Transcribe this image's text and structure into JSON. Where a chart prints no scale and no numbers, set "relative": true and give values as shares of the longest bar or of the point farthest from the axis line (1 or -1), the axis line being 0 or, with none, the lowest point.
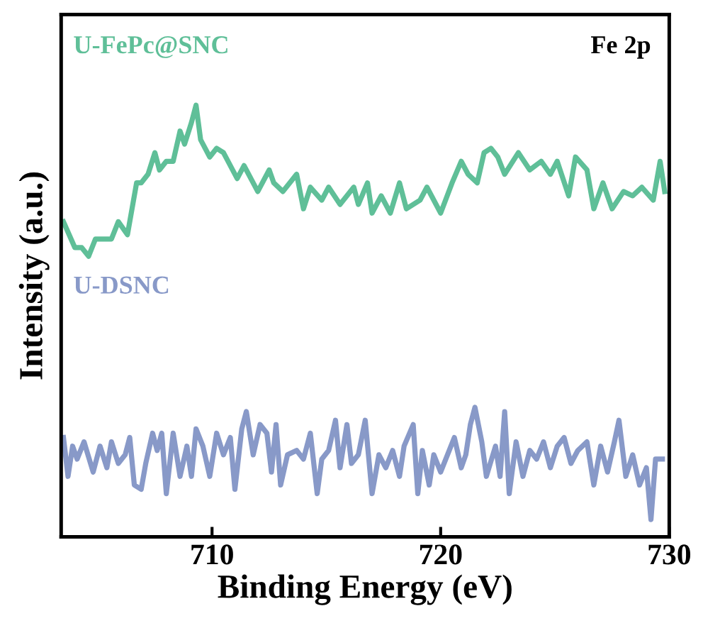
{
  "chart_data": {
    "type": "line",
    "relative": true,
    "xlabel": "Binding Energy (eV)",
    "ylabel": "Intensity (a.u.)",
    "annotations": [
      "Fe 2p"
    ],
    "xlim": [
      703.4,
      730
    ],
    "xticks": [
      710,
      720,
      730
    ],
    "tick_labels": "x",
    "legend": false,
    "grid": false,
    "series": [
      {
        "name": "U-FePc@SNC",
        "color": "#5fbf98",
        "x": [
          703.5,
          704.0,
          704.3,
          704.6,
          704.9,
          705.6,
          705.9,
          706.3,
          706.7,
          706.9,
          707.2,
          707.5,
          707.7,
          708.0,
          708.3,
          708.6,
          708.8,
          709.1,
          709.3,
          709.5,
          709.9,
          710.2,
          710.5,
          711.1,
          711.4,
          711.5,
          712.0,
          712.5,
          712.7,
          713.1,
          713.7,
          714.0,
          714.3,
          714.8,
          715.1,
          715.6,
          716.2,
          716.4,
          716.8,
          717.0,
          717.4,
          717.8,
          718.2,
          718.5,
          719.1,
          719.4,
          720.0,
          720.5,
          720.9,
          721.2,
          721.6,
          721.9,
          722.2,
          722.5,
          722.8,
          723.4,
          723.9,
          724.4,
          724.8,
          725.1,
          725.6,
          725.9,
          726.4,
          726.7,
          727.1,
          727.5,
          728.0,
          728.4,
          728.8,
          729.3,
          729.6,
          729.8
        ],
        "values": [
          0.73,
          0.67,
          0.67,
          0.65,
          0.69,
          0.69,
          0.73,
          0.7,
          0.82,
          0.82,
          0.84,
          0.89,
          0.85,
          0.87,
          0.87,
          0.94,
          0.91,
          0.96,
          1.0,
          0.92,
          0.88,
          0.9,
          0.89,
          0.83,
          0.86,
          0.85,
          0.8,
          0.85,
          0.82,
          0.8,
          0.84,
          0.76,
          0.81,
          0.78,
          0.81,
          0.77,
          0.81,
          0.77,
          0.82,
          0.75,
          0.79,
          0.75,
          0.82,
          0.76,
          0.78,
          0.81,
          0.75,
          0.82,
          0.87,
          0.84,
          0.82,
          0.89,
          0.9,
          0.88,
          0.84,
          0.89,
          0.85,
          0.87,
          0.84,
          0.87,
          0.79,
          0.88,
          0.85,
          0.76,
          0.82,
          0.76,
          0.8,
          0.79,
          0.81,
          0.78,
          0.87,
          0.8
        ]
      },
      {
        "name": "U-DSNC",
        "color": "#8899c8",
        "x": [
          703.5,
          703.7,
          703.9,
          704.1,
          704.4,
          704.8,
          705.1,
          705.4,
          705.6,
          705.9,
          706.2,
          706.4,
          706.6,
          706.9,
          707.1,
          707.4,
          707.6,
          707.8,
          708.0,
          708.3,
          708.6,
          708.9,
          709.1,
          709.3,
          709.6,
          709.9,
          710.2,
          710.5,
          710.8,
          711.0,
          711.3,
          711.5,
          711.8,
          712.1,
          712.4,
          712.6,
          712.8,
          713.0,
          713.3,
          713.7,
          714.0,
          714.3,
          714.6,
          714.8,
          715.1,
          715.4,
          715.6,
          715.9,
          716.1,
          716.4,
          716.7,
          717.0,
          717.3,
          717.6,
          717.9,
          718.2,
          718.4,
          718.8,
          719.0,
          719.2,
          719.5,
          719.7,
          720.0,
          720.3,
          720.6,
          720.9,
          721.1,
          721.3,
          721.5,
          721.8,
          722.0,
          722.4,
          722.6,
          722.8,
          723.0,
          723.3,
          723.6,
          723.9,
          724.2,
          724.5,
          724.8,
          725.1,
          725.4,
          725.7,
          726.0,
          726.4,
          726.7,
          727.0,
          727.3,
          727.6,
          727.8,
          728.1,
          728.4,
          728.7,
          729.0,
          729.2,
          729.4,
          729.7
        ],
        "values": [
          0.23,
          0.14,
          0.21,
          0.18,
          0.22,
          0.15,
          0.21,
          0.16,
          0.22,
          0.17,
          0.19,
          0.23,
          0.12,
          0.11,
          0.17,
          0.24,
          0.2,
          0.24,
          0.1,
          0.24,
          0.14,
          0.21,
          0.14,
          0.25,
          0.21,
          0.14,
          0.24,
          0.19,
          0.23,
          0.11,
          0.25,
          0.29,
          0.19,
          0.26,
          0.24,
          0.15,
          0.26,
          0.12,
          0.19,
          0.2,
          0.18,
          0.24,
          0.1,
          0.18,
          0.2,
          0.27,
          0.16,
          0.26,
          0.17,
          0.19,
          0.27,
          0.1,
          0.19,
          0.16,
          0.2,
          0.14,
          0.21,
          0.26,
          0.1,
          0.2,
          0.12,
          0.19,
          0.15,
          0.19,
          0.23,
          0.16,
          0.19,
          0.26,
          0.3,
          0.22,
          0.14,
          0.21,
          0.14,
          0.29,
          0.1,
          0.22,
          0.14,
          0.2,
          0.18,
          0.22,
          0.16,
          0.21,
          0.23,
          0.17,
          0.2,
          0.22,
          0.12,
          0.21,
          0.15,
          0.22,
          0.27,
          0.14,
          0.19,
          0.12,
          0.16,
          0.04,
          0.18,
          0.18
        ]
      }
    ]
  }
}
